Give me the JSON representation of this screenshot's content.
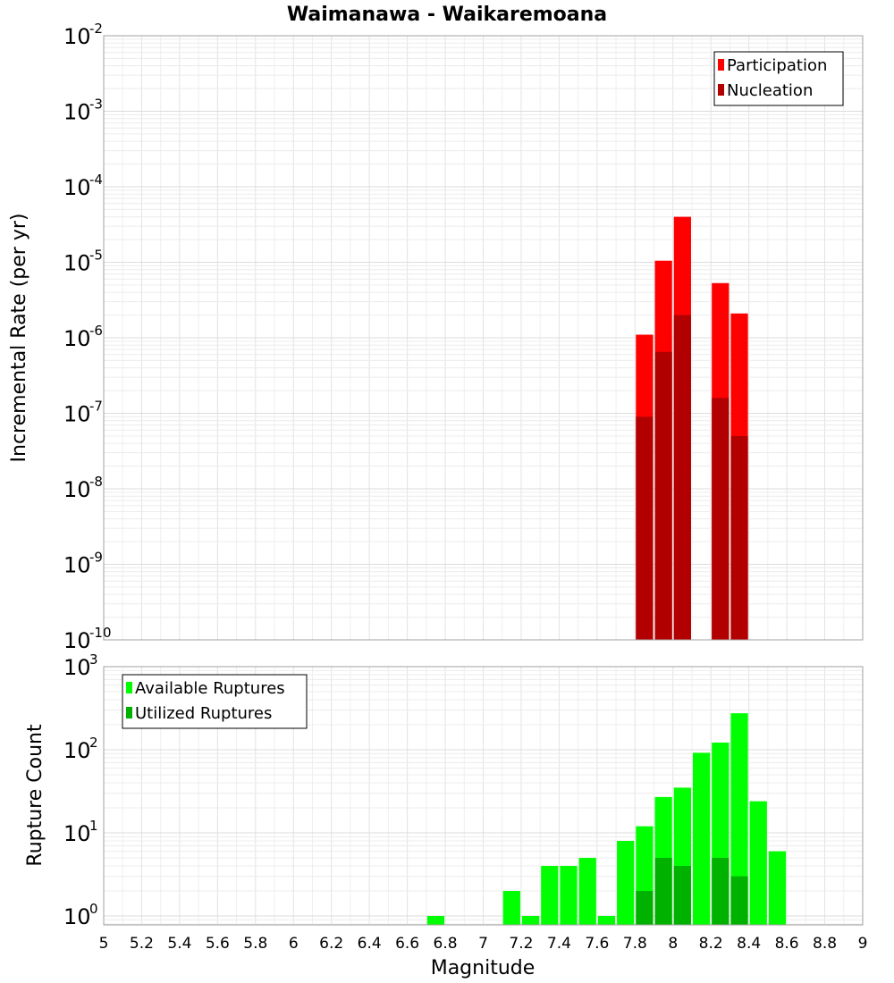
{
  "chart_data": [
    {
      "type": "bar",
      "title": "Waimanawa - Waikaremoana",
      "xlabel": "Magnitude",
      "ylabel": "Incremental Rate (per yr)",
      "yscale": "log",
      "xlim": [
        5,
        9
      ],
      "ylim": [
        1e-10,
        0.01
      ],
      "y_tick_exponents": [
        -10,
        -9,
        -8,
        -7,
        -6,
        -5,
        -4,
        -3,
        -2
      ],
      "legend": {
        "position": "top-right",
        "entries": [
          "Participation",
          "Nucleation"
        ]
      },
      "bar_width": 0.1,
      "series": [
        {
          "name": "Participation",
          "color": "#ff0000",
          "x": [
            7.85,
            7.95,
            8.05,
            8.25,
            8.35
          ],
          "values": [
            1.1e-06,
            1.05e-05,
            4e-05,
            5.3e-06,
            2.1e-06
          ]
        },
        {
          "name": "Nucleation",
          "color": "#b20000",
          "x": [
            7.85,
            7.95,
            8.05,
            8.25,
            8.35
          ],
          "values": [
            9e-08,
            6.5e-07,
            2e-06,
            1.6e-07,
            5e-08
          ]
        }
      ]
    },
    {
      "type": "bar",
      "xlabel": "Magnitude",
      "ylabel": "Rupture Count",
      "yscale": "log",
      "xlim": [
        5,
        9
      ],
      "ylim": [
        0.78,
        1000
      ],
      "y_tick_exponents": [
        0,
        1,
        2,
        3
      ],
      "x_ticks": [
        "5",
        "5.2",
        "5.4",
        "5.6",
        "5.8",
        "6",
        "6.2",
        "6.4",
        "6.6",
        "6.8",
        "7",
        "7.2",
        "7.4",
        "7.6",
        "7.8",
        "8",
        "8.2",
        "8.4",
        "8.6",
        "8.8",
        "9"
      ],
      "legend": {
        "position": "top-left",
        "entries": [
          "Available Ruptures",
          "Utilized Ruptures"
        ]
      },
      "bar_width": 0.1,
      "series": [
        {
          "name": "Available Ruptures",
          "color": "#00ff00",
          "x": [
            6.75,
            7.15,
            7.25,
            7.35,
            7.45,
            7.55,
            7.65,
            7.75,
            7.85,
            7.95,
            8.05,
            8.15,
            8.25,
            8.35,
            8.45,
            8.55
          ],
          "values": [
            1,
            2,
            1,
            4,
            4,
            5,
            1,
            8,
            12,
            27,
            35,
            92,
            122,
            275,
            24,
            6
          ]
        },
        {
          "name": "Utilized Ruptures",
          "color": "#00b200",
          "x": [
            7.85,
            7.95,
            8.05,
            8.25,
            8.35
          ],
          "values": [
            2,
            5,
            4,
            5,
            3
          ]
        }
      ]
    }
  ]
}
